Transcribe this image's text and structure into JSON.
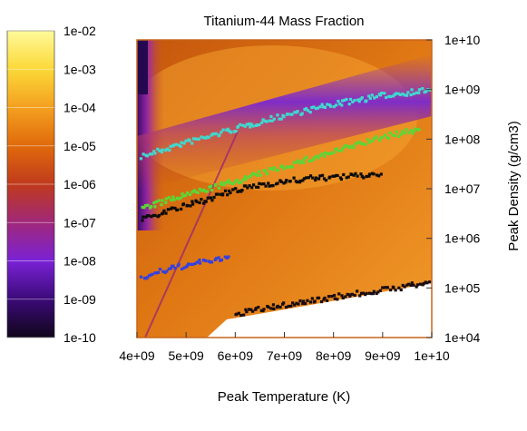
{
  "chart_data": {
    "type": "heatmap",
    "title": "Titanium-44 Mass Fraction",
    "xlabel": "Peak Temperature (K)",
    "ylabel": "Peak Density (g/cm3)",
    "xlim": [
      4000000000,
      10000000000
    ],
    "ylim": [
      10000,
      10000000000
    ],
    "y_scale": "log",
    "x_ticks": [
      "4e+09",
      "5e+09",
      "6e+09",
      "7e+09",
      "8e+09",
      "9e+09",
      "1e+10"
    ],
    "y_ticks": [
      "1e+04",
      "1e+05",
      "1e+06",
      "1e+07",
      "1e+08",
      "1e+09",
      "1e+10"
    ],
    "colorbar": {
      "scale": "log",
      "range": [
        1e-10,
        0.01
      ],
      "ticks": [
        "1e-10",
        "1e-09",
        "1e-08",
        "1e-07",
        "1e-06",
        "1e-05",
        "1e-04",
        "1e-03",
        "1e-02"
      ],
      "colors": [
        "#10061a",
        "#3b0a78",
        "#7a22d6",
        "#a0287a",
        "#c03a1c",
        "#e06a0c",
        "#f4a020",
        "#fbd838",
        "#fffa9a"
      ],
      "position": "left"
    },
    "series": [
      {
        "color": "#40d8d0",
        "points": [
          [
            4100000000.0,
            45000000.0
          ],
          [
            5000000000.0,
            85000000.0
          ],
          [
            6000000000.0,
            160000000.0
          ],
          [
            7000000000.0,
            300000000.0
          ],
          [
            8000000000.0,
            500000000.0
          ],
          [
            9000000000.0,
            750000000.0
          ],
          [
            10000000000.0,
            1000000000.0
          ]
        ]
      },
      {
        "color": "#58d838",
        "points": [
          [
            4100000000.0,
            4000000.0
          ],
          [
            5000000000.0,
            7500000.0
          ],
          [
            6000000000.0,
            14000000.0
          ],
          [
            7000000000.0,
            28000000.0
          ],
          [
            8000000000.0,
            55000000.0
          ],
          [
            9000000000.0,
            110000000.0
          ],
          [
            9800000000.0,
            160000000.0
          ]
        ]
      },
      {
        "color": "#0c0c0c",
        "points": [
          [
            4100000000.0,
            2500000.0
          ],
          [
            5000000000.0,
            4500000.0
          ],
          [
            5800000000.0,
            8000000.0
          ],
          [
            6500000000.0,
            12000000.0
          ],
          [
            7500000000.0,
            16000000.0
          ],
          [
            8500000000.0,
            18000000.0
          ],
          [
            9000000000.0,
            20000000.0
          ]
        ]
      },
      {
        "color": "#3440e0",
        "points": [
          [
            4100000000.0,
            160000.0
          ],
          [
            4600000000.0,
            230000.0
          ],
          [
            5100000000.0,
            300000.0
          ],
          [
            5500000000.0,
            360000.0
          ],
          [
            5900000000.0,
            380000.0
          ]
        ]
      },
      {
        "color": "#1a0c12",
        "points": [
          [
            6000000000.0,
            30000.0
          ],
          [
            7000000000.0,
            45000.0
          ],
          [
            8000000000.0,
            65000.0
          ],
          [
            9000000000.0,
            90000.0
          ],
          [
            10000000000.0,
            130000.0
          ]
        ]
      }
    ]
  }
}
